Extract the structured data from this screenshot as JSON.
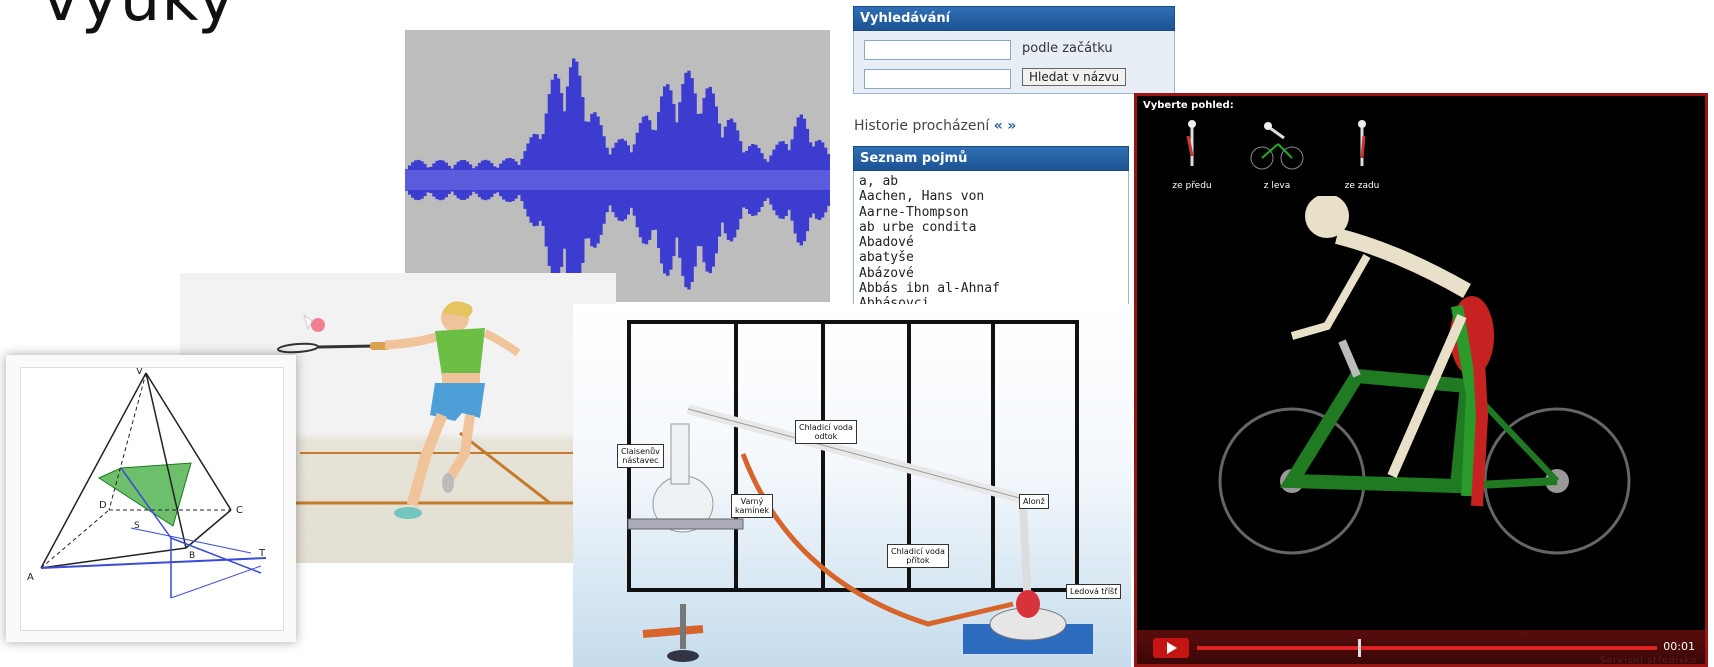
{
  "title": "výuky",
  "search_panel": {
    "header": "Vyhledávání",
    "mode_label": "podle začátku",
    "search_button": "Hledat v názvu",
    "history_label": "Historie procházení",
    "terms_header": "Seznam pojmů",
    "terms": [
      "a, ab",
      "Aachen, Hans von",
      "Aarne-Thompson",
      "ab urbe condita",
      "Abadové",
      "abatyše",
      "Abázové",
      "Abbás ibn al-Ahnaf",
      "Abbásovci"
    ]
  },
  "lab_labels": {
    "claisen": "Claisenův\nnástavec",
    "cooling_out": "Chladicí voda\nodtok",
    "boiling": "Varný\nkamínek",
    "alonz": "Alonž",
    "cooling_in": "Chladicí voda\npřítok",
    "ice_bath": "Ledová tříšť"
  },
  "pyramid_labels": {
    "v": "V",
    "a": "A",
    "b": "B",
    "c": "C",
    "d": "D",
    "s": "S",
    "t": "T"
  },
  "cyclist_player": {
    "prompt": "Vyberte pohled:",
    "views": [
      "ze předu",
      "z leva",
      "ze zadu"
    ],
    "time": "00:01",
    "progress": 0.35,
    "watermark": "Servisní středisko"
  },
  "colors": {
    "panel_header": "#1d5394",
    "player_border": "#9b1414",
    "waveform": "#3c3cd0"
  }
}
